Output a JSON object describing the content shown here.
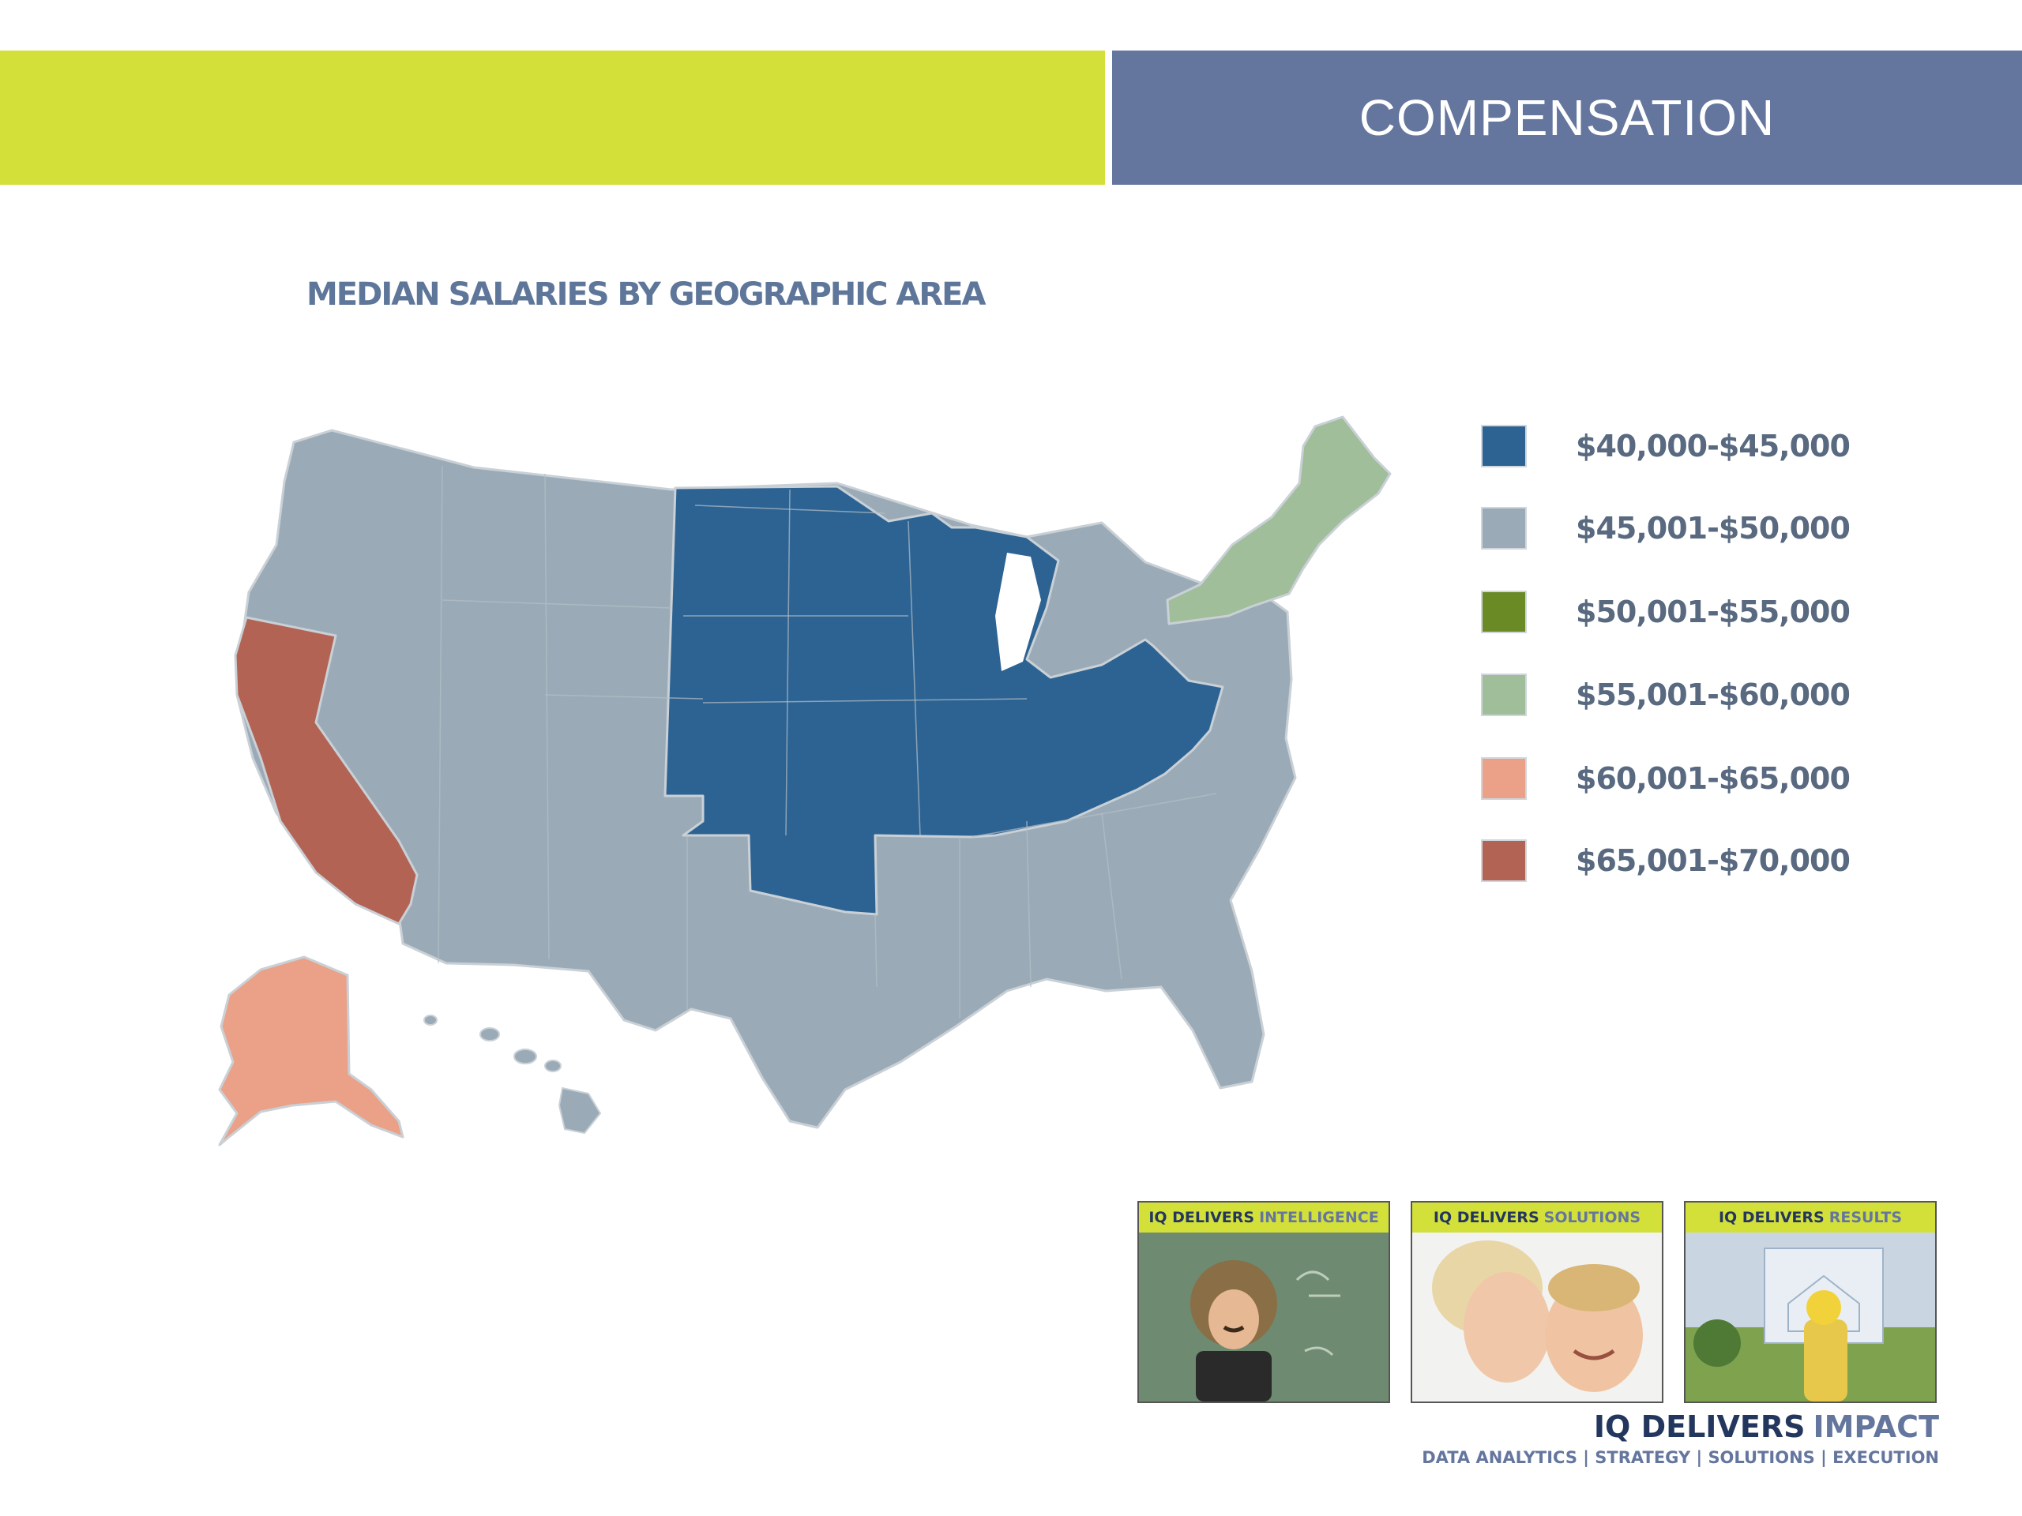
{
  "header": {
    "title": "COMPENSATION"
  },
  "map": {
    "title": "MEDIAN SALARIES BY GEOGRAPHIC AREA",
    "regions": [
      {
        "name": "west-and-south",
        "range": "$45,001-$50,000"
      },
      {
        "name": "midwest",
        "range": "$40,000-$45,000"
      },
      {
        "name": "new-england",
        "range": "$55,001-$60,000"
      },
      {
        "name": "alaska",
        "range": "$60,001-$65,000"
      },
      {
        "name": "california",
        "range": "$65,001-$70,000"
      }
    ]
  },
  "legend": [
    {
      "label": "$40,000-$45,000",
      "color": "#2d6393"
    },
    {
      "label": "$45,001-$50,000",
      "color": "#9aabb7"
    },
    {
      "label": "$50,001-$55,000",
      "color": "#6a8a26"
    },
    {
      "label": "$55,001-$60,000",
      "color": "#9fbe99"
    },
    {
      "label": "$60,001-$65,000",
      "color": "#eaa187"
    },
    {
      "label": "$65,001-$70,000",
      "color": "#b36353"
    }
  ],
  "footer": {
    "tiles": [
      {
        "part1": "IQ DELIVERS",
        "part2": "INTELLIGENCE"
      },
      {
        "part1": "IQ DELIVERS",
        "part2": "SOLUTIONS"
      },
      {
        "part1": "IQ DELIVERS",
        "part2": "RESULTS"
      }
    ],
    "brand_part1": "IQ DELIVERS",
    "brand_part2": "IMPACT",
    "tagline": "DATA ANALYTICS | STRATEGY | SOLUTIONS | EXECUTION"
  },
  "colors": {
    "accent_green": "#d4e03a",
    "accent_slate": "#64769e",
    "navy": "#23375e"
  }
}
